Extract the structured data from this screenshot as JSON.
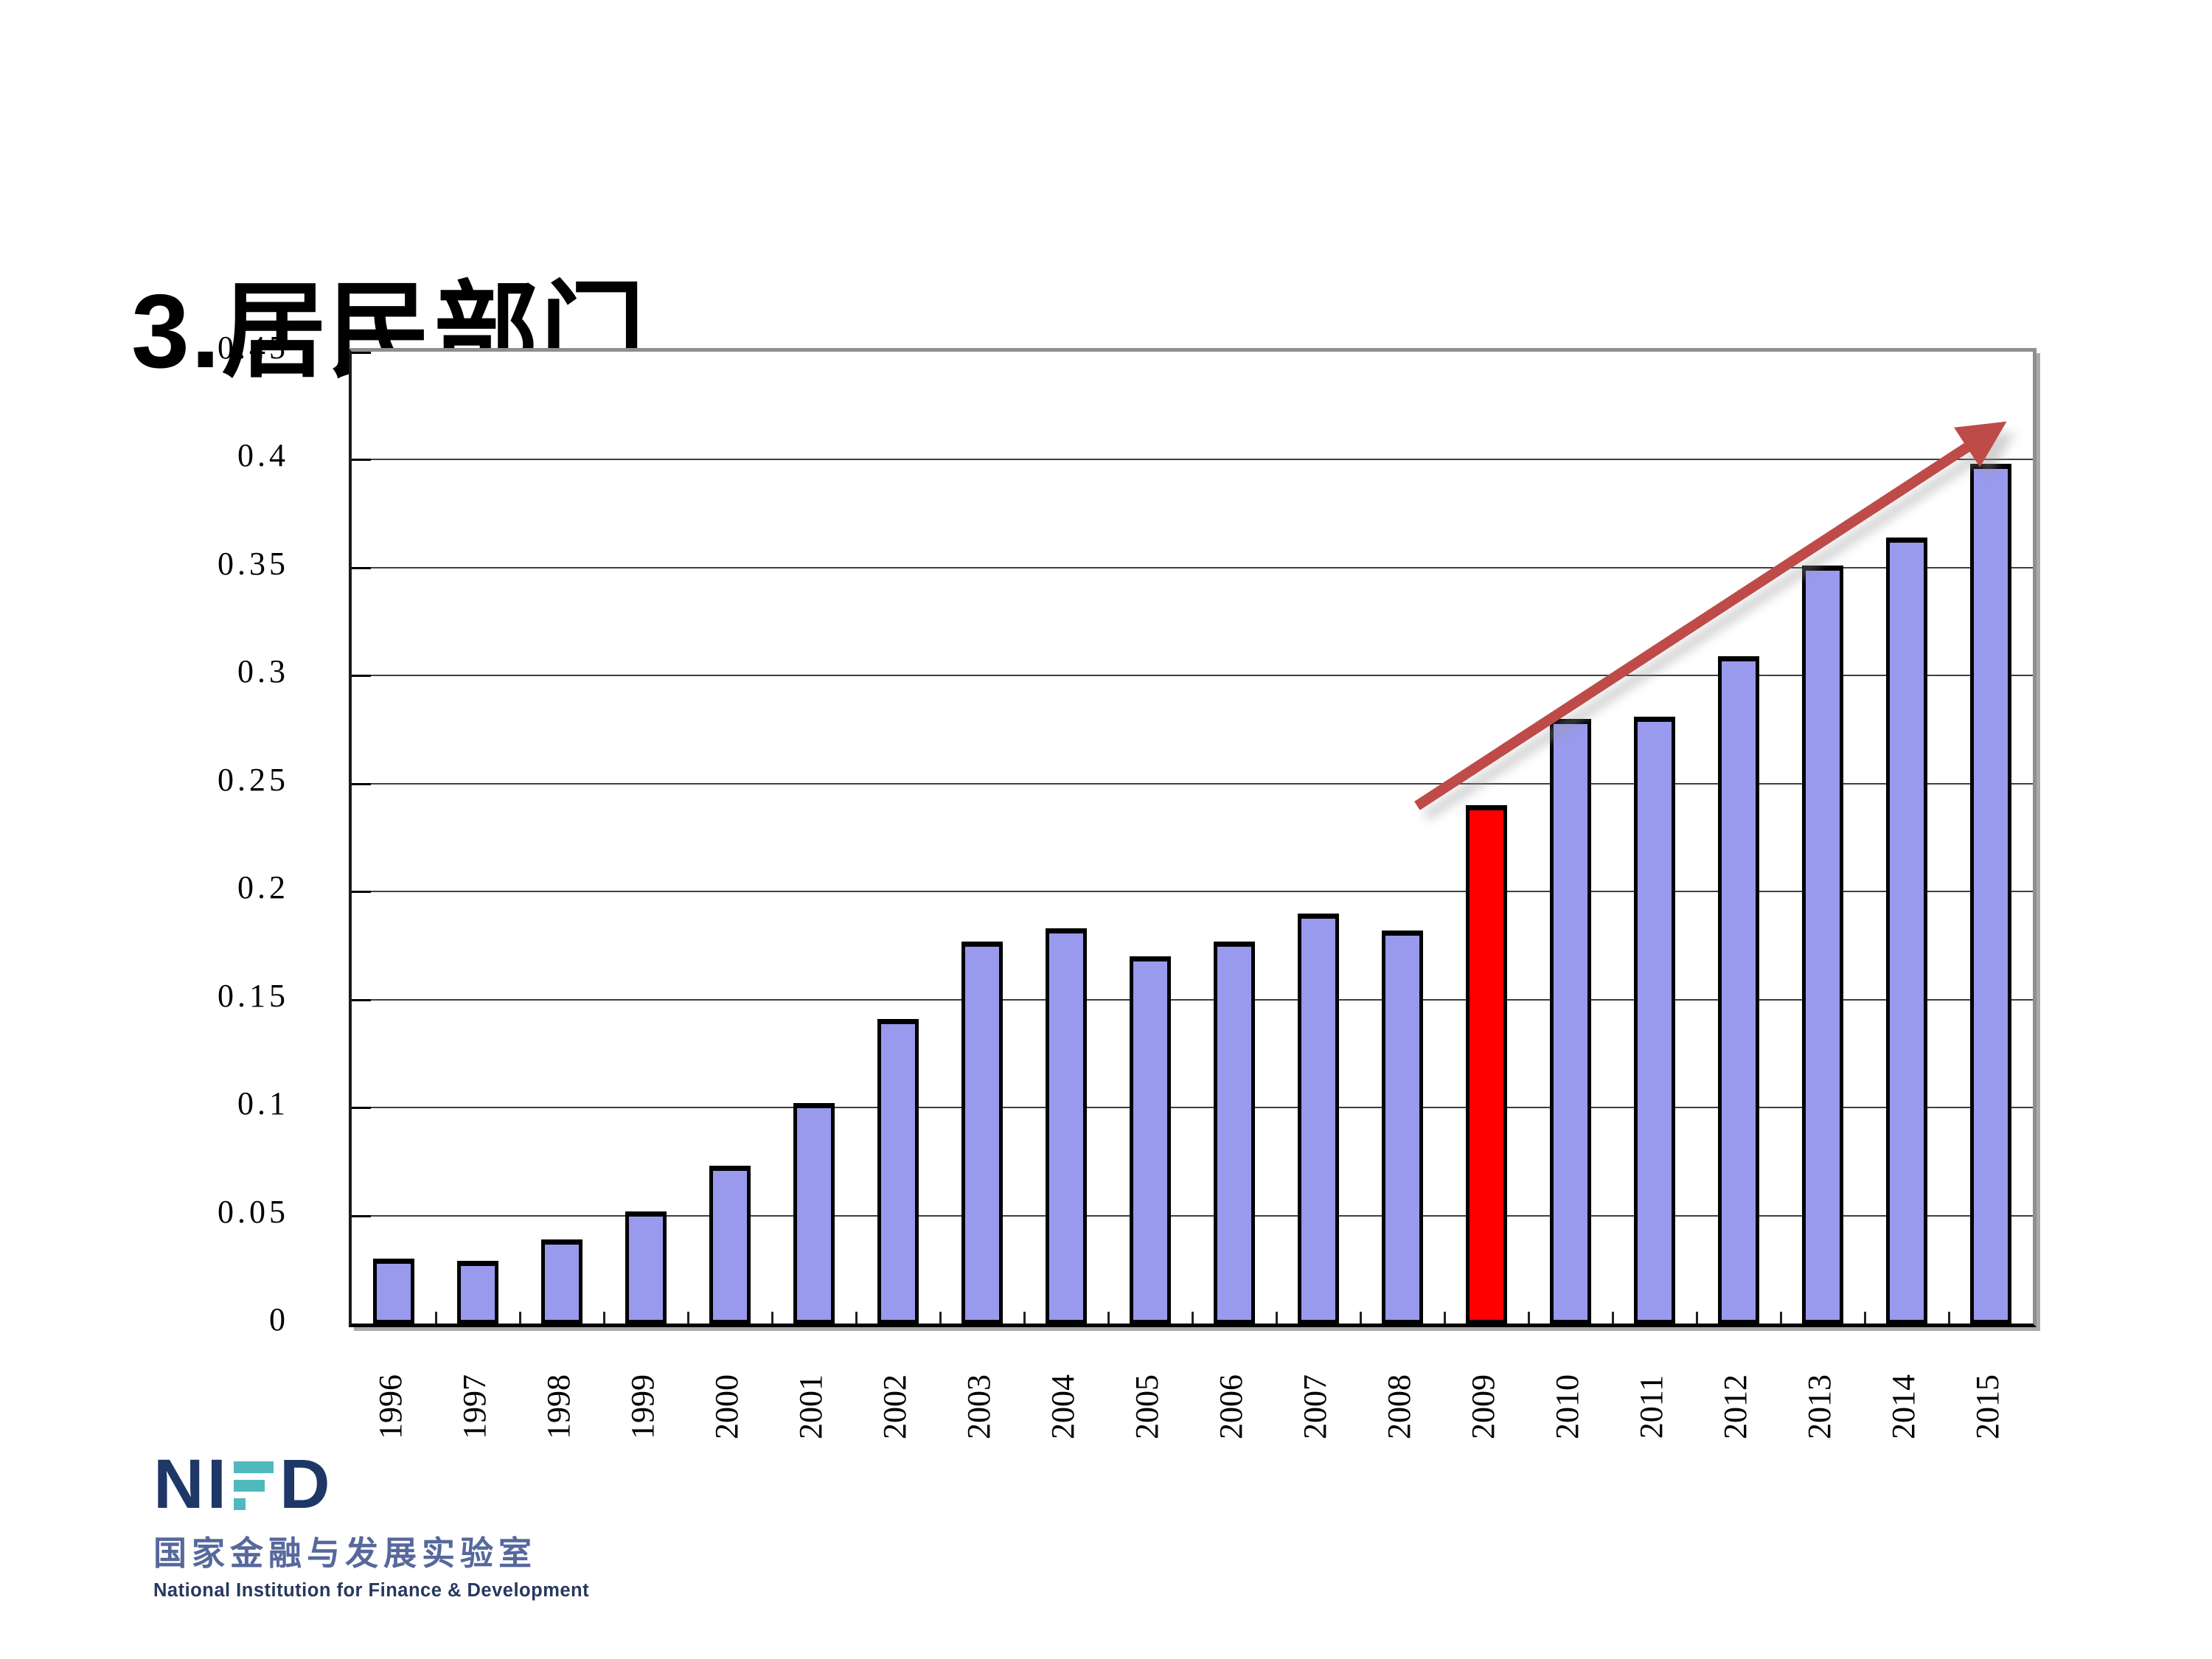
{
  "title": "3.居民部门",
  "logo": {
    "acronym": "NIFD",
    "prefix": "NI",
    "suffix": "D",
    "cn_name": "国家金融与发展实验室",
    "en_name": "National Institution for Finance & Development",
    "navy": "#1e3766",
    "teal": "#4fb9bd"
  },
  "chart_data": {
    "type": "bar",
    "title": "",
    "xlabel": "",
    "ylabel": "",
    "categories": [
      "1996",
      "1997",
      "1998",
      "1999",
      "2000",
      "2001",
      "2002",
      "2003",
      "2004",
      "2005",
      "2006",
      "2007",
      "2008",
      "2009",
      "2010",
      "2011",
      "2012",
      "2013",
      "2014",
      "2015"
    ],
    "values": [
      0.03,
      0.029,
      0.039,
      0.052,
      0.073,
      0.102,
      0.141,
      0.177,
      0.183,
      0.17,
      0.177,
      0.19,
      0.182,
      0.24,
      0.28,
      0.281,
      0.309,
      0.351,
      0.364,
      0.398
    ],
    "ylim": [
      0,
      0.45
    ],
    "ytick_step": 0.05,
    "ytick_labels": [
      "0.45",
      "0.4",
      "0.35",
      "0.3",
      "0.25",
      "0.2",
      "0.15",
      "0.1",
      "0.05",
      "0"
    ],
    "grid": true,
    "legend": "none",
    "bar_fill_color": "#9999ee",
    "bar_border_color": "#000000",
    "highlight_category": "2009",
    "highlight_color": "#ff0000",
    "annotations": {
      "trend_arrow": {
        "color": "#be4b48",
        "shadow_color": "#9a9a9a",
        "from": {
          "x_frac": 0.6355,
          "value": 0.238
        },
        "to": {
          "x_frac": 0.9803,
          "value": 0.413
        }
      }
    }
  }
}
